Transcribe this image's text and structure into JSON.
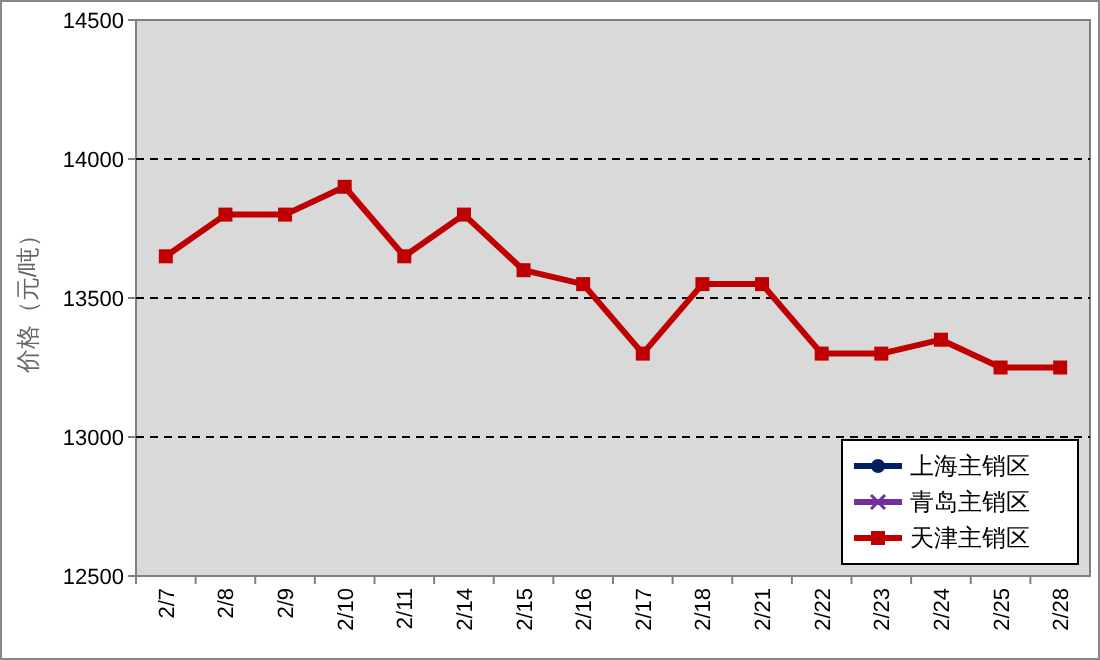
{
  "chart_data": {
    "type": "line",
    "ylabel": "价格（元/吨）",
    "categories": [
      "2/7",
      "2/8",
      "2/9",
      "2/10",
      "2/11",
      "2/14",
      "2/15",
      "2/16",
      "2/17",
      "2/18",
      "2/21",
      "2/22",
      "2/23",
      "2/24",
      "2/25",
      "2/28"
    ],
    "series": [
      {
        "name": "上海主销区",
        "color": "#002060",
        "marker": "circle",
        "values": [
          null,
          null,
          null,
          null,
          null,
          null,
          null,
          null,
          null,
          null,
          null,
          null,
          null,
          null,
          null,
          null
        ]
      },
      {
        "name": "青岛主销区",
        "color": "#7030a0",
        "marker": "cross",
        "values": [
          null,
          null,
          null,
          null,
          null,
          null,
          null,
          null,
          null,
          null,
          null,
          null,
          null,
          null,
          null,
          null
        ]
      },
      {
        "name": "天津主销区",
        "color": "#c00000",
        "marker": "square",
        "values": [
          13650,
          13800,
          13800,
          13900,
          13650,
          13800,
          13600,
          13550,
          13300,
          13550,
          13550,
          13300,
          13300,
          13350,
          13250,
          13250
        ]
      }
    ],
    "ylim": [
      12500,
      14500
    ],
    "yticks": [
      12500,
      13000,
      13500,
      14000,
      14500
    ],
    "grid": "y",
    "line_style": "solid",
    "legend": "bottom right"
  }
}
